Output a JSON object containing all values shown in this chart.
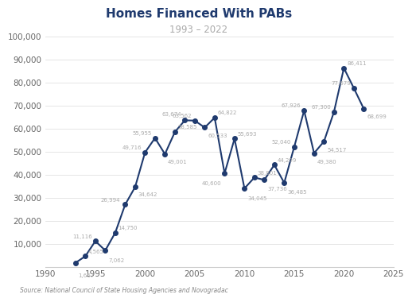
{
  "title": "Homes Financed With PABs",
  "subtitle": "1993 – 2022",
  "source": "Source: National Council of State Housing Agencies and Novogradac",
  "years": [
    1993,
    1994,
    1995,
    1996,
    1997,
    1998,
    1999,
    2000,
    2001,
    2002,
    2003,
    2004,
    2005,
    2006,
    2007,
    2008,
    2009,
    2010,
    2011,
    2012,
    2013,
    2014,
    2015,
    2016,
    2017,
    2018,
    2019,
    2020,
    2021,
    2022
  ],
  "values": [
    1667,
    4565,
    11116,
    7062,
    14750,
    26994,
    34642,
    49716,
    55955,
    49001,
    58585,
    63674,
    63562,
    60533,
    64822,
    40600,
    55693,
    34045,
    38801,
    37736,
    44299,
    36485,
    52040,
    67926,
    49380,
    54517,
    67300,
    86411,
    77679,
    68699
  ],
  "labels": [
    "1,667",
    "4,565",
    "11,116",
    "7,062",
    "14,750",
    "26,994",
    "34,642",
    "49,716",
    "55,955",
    "49,001",
    "58,585",
    "63,674",
    "63,562",
    "60,533",
    "64,822",
    "40,600",
    "55,693",
    "34,045",
    "38,801",
    "37,736",
    "44,299",
    "36,485",
    "52,040",
    "67,926",
    "49,380",
    "54,517",
    "67,300",
    "86,411",
    "77,679",
    "68,699"
  ],
  "line_color": "#1f3a6e",
  "marker_color": "#1f3a6e",
  "label_color": "#aaaaaa",
  "title_color": "#1f3a6e",
  "subtitle_color": "#aaaaaa",
  "background_color": "#ffffff",
  "grid_color": "#e0e0e0",
  "xlim": [
    1990,
    2025
  ],
  "ylim": [
    0,
    100000
  ],
  "yticks": [
    0,
    10000,
    20000,
    30000,
    40000,
    50000,
    60000,
    70000,
    80000,
    90000,
    100000
  ],
  "xticks": [
    1990,
    1995,
    2000,
    2005,
    2010,
    2015,
    2020,
    2025
  ]
}
